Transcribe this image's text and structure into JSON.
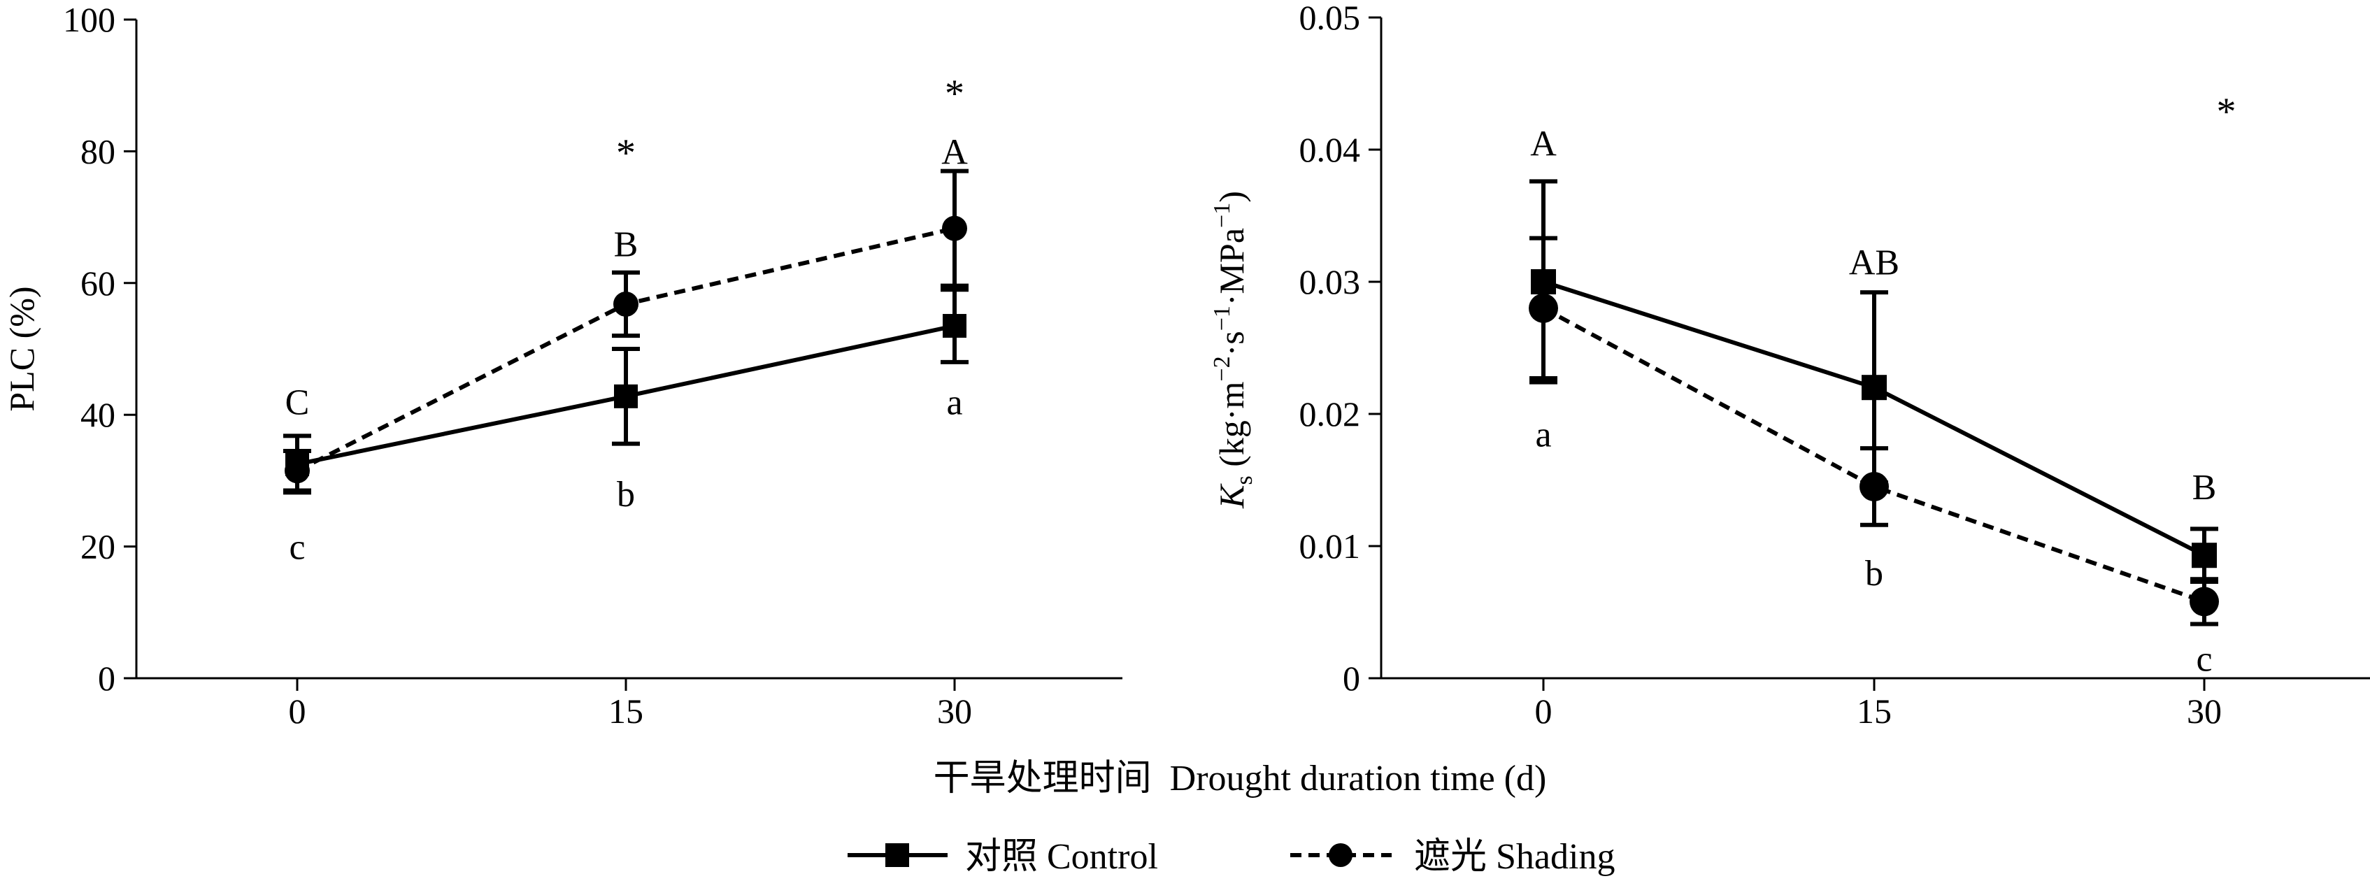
{
  "xlabel": "干旱处理时间  Drought duration time (d)",
  "legend": {
    "control_label": "对照 Control",
    "shading_label": "遮光 Shading"
  },
  "chart_data": [
    {
      "type": "line",
      "x": [
        0,
        15,
        30
      ],
      "x_ticks": [
        "0",
        "15",
        "30"
      ],
      "ylabel": "PLC (%)",
      "ylim": [
        0,
        100
      ],
      "y_ticks": [
        "0",
        "20",
        "40",
        "60",
        "80",
        "100"
      ],
      "series": [
        {
          "name": "对照 Control",
          "marker": "square",
          "style": "solid",
          "values": [
            32.5,
            42.8,
            53.5
          ],
          "errors": [
            4.3,
            7.2,
            5.5
          ]
        },
        {
          "name": "遮光 Shading",
          "marker": "circle",
          "style": "dashed",
          "values": [
            31.5,
            56.8,
            68.3
          ],
          "errors": [
            3.0,
            4.8,
            8.7
          ]
        }
      ],
      "annotations": [
        {
          "x": 0,
          "y": 42,
          "text": "C"
        },
        {
          "x": 15,
          "y": 66,
          "text": "B"
        },
        {
          "x": 30,
          "y": 80,
          "text": "A"
        },
        {
          "x": 0,
          "y": 20,
          "text": "c"
        },
        {
          "x": 15,
          "y": 28,
          "text": "b"
        },
        {
          "x": 30,
          "y": 42,
          "text": "a"
        },
        {
          "x": 15,
          "y": 81,
          "text": "*"
        },
        {
          "x": 30,
          "y": 90,
          "text": "*"
        }
      ]
    },
    {
      "type": "line",
      "x": [
        0,
        15,
        30
      ],
      "x_ticks": [
        "0",
        "15",
        "30"
      ],
      "ylabel": "Ks (kg·m−2·s−1·MPa−1)",
      "ylabel_parts": {
        "k": "K",
        "s": "s",
        "open": " (kg·m",
        "e1": "−2",
        "dot1": "·s",
        "e2": "−1",
        "dot2": "·MPa",
        "e3": "−1",
        "close": ")"
      },
      "ylim": [
        0,
        0.05
      ],
      "y_ticks": [
        "0",
        "0.01",
        "0.02",
        "0.03",
        "0.04",
        "0.05"
      ],
      "series": [
        {
          "name": "对照 Control",
          "marker": "square",
          "style": "solid",
          "values": [
            0.03,
            0.022,
            0.0093
          ],
          "errors": [
            0.0076,
            0.0072,
            0.002
          ]
        },
        {
          "name": "遮光 Shading",
          "marker": "circle",
          "style": "dashed",
          "values": [
            0.028,
            0.0145,
            0.0058
          ],
          "errors": [
            0.0053,
            0.0029,
            0.0017
          ]
        }
      ],
      "annotations": [
        {
          "x": 0,
          "y": 0.0405,
          "text": "A"
        },
        {
          "x": 15,
          "y": 0.0315,
          "text": "AB"
        },
        {
          "x": 30,
          "y": 0.0145,
          "text": "B"
        },
        {
          "x": 0,
          "y": 0.0185,
          "text": "a"
        },
        {
          "x": 15,
          "y": 0.008,
          "text": "b"
        },
        {
          "x": 30,
          "y": 0.0015,
          "text": "c"
        },
        {
          "x": 31,
          "y": 0.0435,
          "text": "*"
        }
      ]
    }
  ]
}
